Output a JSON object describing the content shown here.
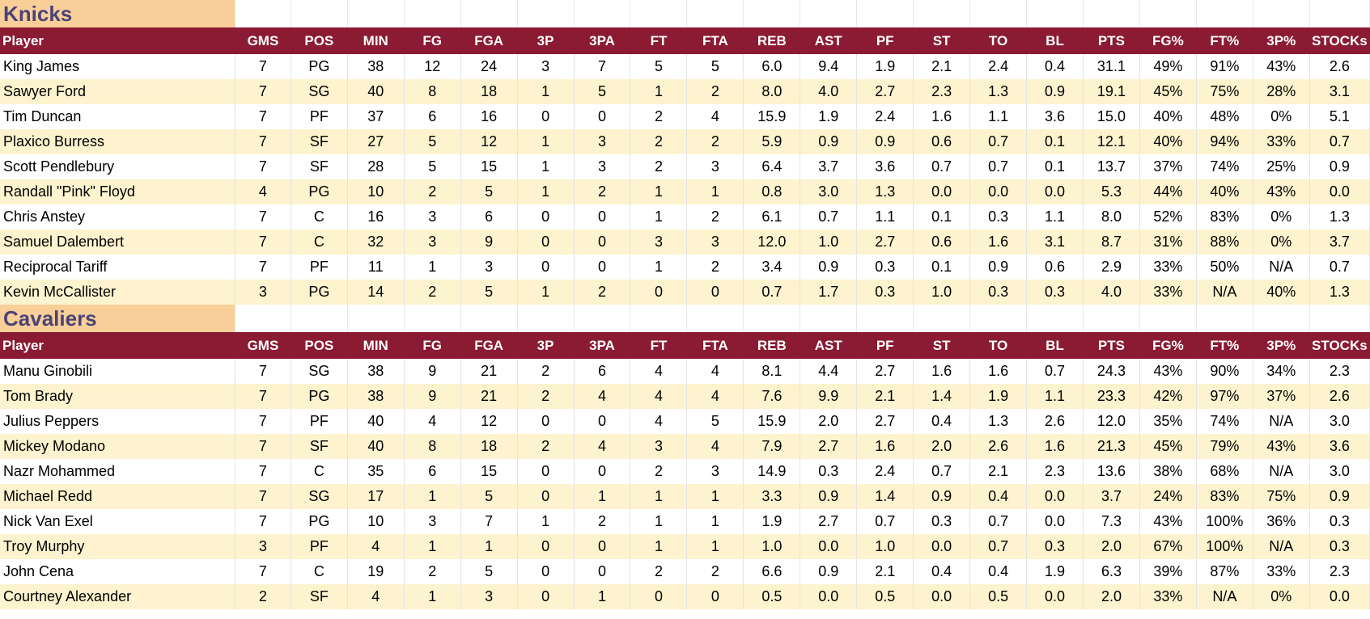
{
  "columns": [
    "Player",
    "GMS",
    "POS",
    "MIN",
    "FG",
    "FGA",
    "3P",
    "3PA",
    "FT",
    "FTA",
    "REB",
    "AST",
    "PF",
    "ST",
    "TO",
    "BL",
    "PTS",
    "FG%",
    "FT%",
    "3P%",
    "STOCKs"
  ],
  "teams": [
    {
      "name": "Knicks",
      "rows": [
        [
          "King James",
          "7",
          "PG",
          "38",
          "12",
          "24",
          "3",
          "7",
          "5",
          "5",
          "6.0",
          "9.4",
          "1.9",
          "2.1",
          "2.4",
          "0.4",
          "31.1",
          "49%",
          "91%",
          "43%",
          "2.6"
        ],
        [
          "Sawyer Ford",
          "7",
          "SG",
          "40",
          "8",
          "18",
          "1",
          "5",
          "1",
          "2",
          "8.0",
          "4.0",
          "2.7",
          "2.3",
          "1.3",
          "0.9",
          "19.1",
          "45%",
          "75%",
          "28%",
          "3.1"
        ],
        [
          "Tim Duncan",
          "7",
          "PF",
          "37",
          "6",
          "16",
          "0",
          "0",
          "2",
          "4",
          "15.9",
          "1.9",
          "2.4",
          "1.6",
          "1.1",
          "3.6",
          "15.0",
          "40%",
          "48%",
          "0%",
          "5.1"
        ],
        [
          "Plaxico Burress",
          "7",
          "SF",
          "27",
          "5",
          "12",
          "1",
          "3",
          "2",
          "2",
          "5.9",
          "0.9",
          "0.9",
          "0.6",
          "0.7",
          "0.1",
          "12.1",
          "40%",
          "94%",
          "33%",
          "0.7"
        ],
        [
          "Scott Pendlebury",
          "7",
          "SF",
          "28",
          "5",
          "15",
          "1",
          "3",
          "2",
          "3",
          "6.4",
          "3.7",
          "3.6",
          "0.7",
          "0.7",
          "0.1",
          "13.7",
          "37%",
          "74%",
          "25%",
          "0.9"
        ],
        [
          "Randall \"Pink\" Floyd",
          "4",
          "PG",
          "10",
          "2",
          "5",
          "1",
          "2",
          "1",
          "1",
          "0.8",
          "3.0",
          "1.3",
          "0.0",
          "0.0",
          "0.0",
          "5.3",
          "44%",
          "40%",
          "43%",
          "0.0"
        ],
        [
          "Chris Anstey",
          "7",
          "C",
          "16",
          "3",
          "6",
          "0",
          "0",
          "1",
          "2",
          "6.1",
          "0.7",
          "1.1",
          "0.1",
          "0.3",
          "1.1",
          "8.0",
          "52%",
          "83%",
          "0%",
          "1.3"
        ],
        [
          "Samuel Dalembert",
          "7",
          "C",
          "32",
          "3",
          "9",
          "0",
          "0",
          "3",
          "3",
          "12.0",
          "1.0",
          "2.7",
          "0.6",
          "1.6",
          "3.1",
          "8.7",
          "31%",
          "88%",
          "0%",
          "3.7"
        ],
        [
          "Reciprocal Tariff",
          "7",
          "PF",
          "11",
          "1",
          "3",
          "0",
          "0",
          "1",
          "2",
          "3.4",
          "0.9",
          "0.3",
          "0.1",
          "0.9",
          "0.6",
          "2.9",
          "33%",
          "50%",
          "N/A",
          "0.7"
        ],
        [
          "Kevin McCallister",
          "3",
          "PG",
          "14",
          "2",
          "5",
          "1",
          "2",
          "0",
          "0",
          "0.7",
          "1.7",
          "0.3",
          "1.0",
          "0.3",
          "0.3",
          "4.0",
          "33%",
          "N/A",
          "40%",
          "1.3"
        ]
      ]
    },
    {
      "name": "Cavaliers",
      "rows": [
        [
          "Manu Ginobili",
          "7",
          "SG",
          "38",
          "9",
          "21",
          "2",
          "6",
          "4",
          "4",
          "8.1",
          "4.4",
          "2.7",
          "1.6",
          "1.6",
          "0.7",
          "24.3",
          "43%",
          "90%",
          "34%",
          "2.3"
        ],
        [
          "Tom Brady",
          "7",
          "PG",
          "38",
          "9",
          "21",
          "2",
          "4",
          "4",
          "4",
          "7.6",
          "9.9",
          "2.1",
          "1.4",
          "1.9",
          "1.1",
          "23.3",
          "42%",
          "97%",
          "37%",
          "2.6"
        ],
        [
          "Julius Peppers",
          "7",
          "PF",
          "40",
          "4",
          "12",
          "0",
          "0",
          "4",
          "5",
          "15.9",
          "2.0",
          "2.7",
          "0.4",
          "1.3",
          "2.6",
          "12.0",
          "35%",
          "74%",
          "N/A",
          "3.0"
        ],
        [
          "Mickey Modano",
          "7",
          "SF",
          "40",
          "8",
          "18",
          "2",
          "4",
          "3",
          "4",
          "7.9",
          "2.7",
          "1.6",
          "2.0",
          "2.6",
          "1.6",
          "21.3",
          "45%",
          "79%",
          "43%",
          "3.6"
        ],
        [
          "Nazr Mohammed",
          "7",
          "C",
          "35",
          "6",
          "15",
          "0",
          "0",
          "2",
          "3",
          "14.9",
          "0.3",
          "2.4",
          "0.7",
          "2.1",
          "2.3",
          "13.6",
          "38%",
          "68%",
          "N/A",
          "3.0"
        ],
        [
          "Michael Redd",
          "7",
          "SG",
          "17",
          "1",
          "5",
          "0",
          "1",
          "1",
          "1",
          "3.3",
          "0.9",
          "1.4",
          "0.9",
          "0.4",
          "0.0",
          "3.7",
          "24%",
          "83%",
          "75%",
          "0.9"
        ],
        [
          "Nick Van Exel",
          "7",
          "PG",
          "10",
          "3",
          "7",
          "1",
          "2",
          "1",
          "1",
          "1.9",
          "2.7",
          "0.7",
          "0.3",
          "0.7",
          "0.0",
          "7.3",
          "43%",
          "100%",
          "36%",
          "0.3"
        ],
        [
          "Troy Murphy",
          "3",
          "PF",
          "4",
          "1",
          "1",
          "0",
          "0",
          "1",
          "1",
          "1.0",
          "0.0",
          "1.0",
          "0.0",
          "0.7",
          "0.3",
          "2.0",
          "67%",
          "100%",
          "N/A",
          "0.3"
        ],
        [
          "John Cena",
          "7",
          "C",
          "19",
          "2",
          "5",
          "0",
          "0",
          "2",
          "2",
          "6.6",
          "0.9",
          "2.1",
          "0.4",
          "0.4",
          "1.9",
          "6.3",
          "39%",
          "87%",
          "33%",
          "2.3"
        ],
        [
          "Courtney Alexander",
          "2",
          "SF",
          "4",
          "1",
          "3",
          "0",
          "1",
          "0",
          "0",
          "0.5",
          "0.0",
          "0.5",
          "0.0",
          "0.5",
          "0.0",
          "2.0",
          "33%",
          "N/A",
          "0%",
          "0.0"
        ]
      ]
    }
  ]
}
